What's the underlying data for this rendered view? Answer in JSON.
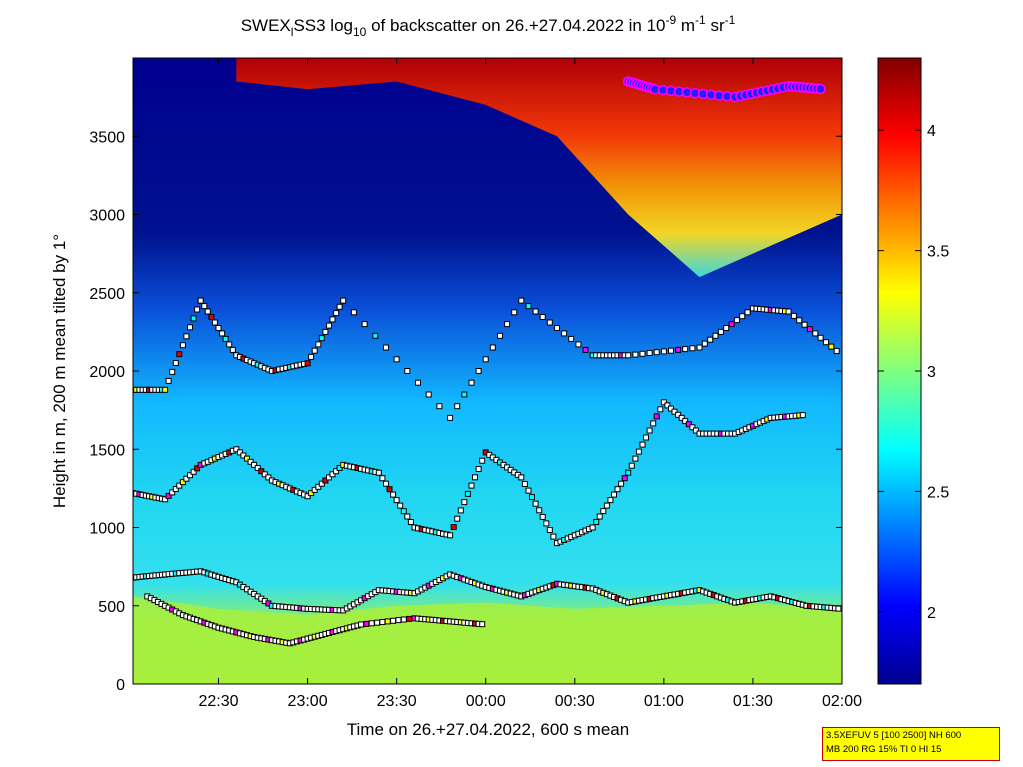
{
  "chart_data": {
    "type": "heatmap",
    "title": {
      "prefix": "SWEX",
      "prefix_sub": "l",
      "mid": "SS3 log",
      "mid_sub": "10",
      "suffix": " of backscatter on 26.+27.04.2022 in 10",
      "unit_exp1": "-9",
      "unit_m": " m",
      "unit_exp2": "-1",
      "unit_sr": " sr",
      "unit_exp3": "-1"
    },
    "xlabel": "Time on 26.+27.04.2022, 600 s mean",
    "ylabel": "Height in m, 200 m mean tilted by 1°",
    "x_ticks": [
      {
        "value": 22.5,
        "label": "22:30"
      },
      {
        "value": 23.0,
        "label": "23:00"
      },
      {
        "value": 23.5,
        "label": "23:30"
      },
      {
        "value": 24.0,
        "label": "00:00"
      },
      {
        "value": 24.5,
        "label": "00:30"
      },
      {
        "value": 25.0,
        "label": "01:00"
      },
      {
        "value": 25.5,
        "label": "01:30"
      },
      {
        "value": 26.0,
        "label": "02:00"
      }
    ],
    "y_ticks": [
      {
        "value": 0,
        "label": "0"
      },
      {
        "value": 500,
        "label": "500"
      },
      {
        "value": 1000,
        "label": "1000"
      },
      {
        "value": 1500,
        "label": "1500"
      },
      {
        "value": 2000,
        "label": "2000"
      },
      {
        "value": 2500,
        "label": "2500"
      },
      {
        "value": 3000,
        "label": "3000"
      },
      {
        "value": 3500,
        "label": "3500"
      }
    ],
    "xlim": [
      22.02,
      26.0
    ],
    "ylim": [
      0,
      4000
    ],
    "colorbar": {
      "colormap": "jet",
      "clim": [
        1.7,
        4.3
      ],
      "ticks": [
        {
          "value": 2.0,
          "label": "2"
        },
        {
          "value": 2.5,
          "label": "2.5"
        },
        {
          "value": 3.0,
          "label": "3"
        },
        {
          "value": 3.5,
          "label": "3.5"
        },
        {
          "value": 4.0,
          "label": "4"
        }
      ]
    },
    "layers": {
      "surface_layer": [
        {
          "x": 22.02,
          "h": 560
        },
        {
          "x": 22.5,
          "h": 480
        },
        {
          "x": 23.0,
          "h": 440
        },
        {
          "x": 23.5,
          "h": 500
        },
        {
          "x": 24.0,
          "h": 520
        },
        {
          "x": 24.5,
          "h": 480
        },
        {
          "x": 25.0,
          "h": 500
        },
        {
          "x": 25.5,
          "h": 520
        },
        {
          "x": 26.0,
          "h": 470
        }
      ],
      "cloud_top_region": [
        {
          "x": 22.6,
          "h": 3850
        },
        {
          "x": 23.0,
          "h": 3800
        },
        {
          "x": 23.5,
          "h": 3850
        },
        {
          "x": 24.0,
          "h": 3700
        },
        {
          "x": 24.4,
          "h": 3500
        },
        {
          "x": 24.8,
          "h": 3000
        },
        {
          "x": 25.2,
          "h": 2600
        },
        {
          "x": 25.6,
          "h": 2800
        },
        {
          "x": 26.0,
          "h": 3000
        }
      ]
    },
    "detections": {
      "series": [
        {
          "name": "layer_boundary_lower",
          "color": "#000000",
          "points": [
            [
              22.02,
              680
            ],
            [
              22.2,
              700
            ],
            [
              22.4,
              720
            ],
            [
              22.6,
              650
            ],
            [
              22.8,
              500
            ],
            [
              23.0,
              480
            ],
            [
              23.2,
              470
            ],
            [
              23.4,
              600
            ],
            [
              23.6,
              580
            ],
            [
              23.8,
              700
            ],
            [
              24.0,
              620
            ],
            [
              24.2,
              560
            ],
            [
              24.4,
              640
            ],
            [
              24.6,
              610
            ],
            [
              24.8,
              520
            ],
            [
              25.0,
              560
            ],
            [
              25.2,
              600
            ],
            [
              25.4,
              520
            ],
            [
              25.6,
              560
            ],
            [
              25.8,
              500
            ],
            [
              26.0,
              480
            ]
          ]
        },
        {
          "name": "layer_boundary_bl",
          "color": "#000000",
          "points": [
            [
              22.1,
              560
            ],
            [
              22.3,
              440
            ],
            [
              22.5,
              360
            ],
            [
              22.7,
              300
            ],
            [
              22.9,
              260
            ],
            [
              23.1,
              320
            ],
            [
              23.3,
              380
            ],
            [
              23.6,
              420
            ],
            [
              23.8,
              400
            ],
            [
              24.0,
              380
            ]
          ]
        },
        {
          "name": "layer_boundary_mid",
          "color": "#000000",
          "points": [
            [
              22.02,
              1220
            ],
            [
              22.2,
              1180
            ],
            [
              22.4,
              1400
            ],
            [
              22.6,
              1500
            ],
            [
              22.8,
              1300
            ],
            [
              23.0,
              1200
            ],
            [
              23.2,
              1400
            ],
            [
              23.4,
              1350
            ],
            [
              23.6,
              1000
            ],
            [
              23.8,
              950
            ],
            [
              24.0,
              1480
            ],
            [
              24.2,
              1320
            ],
            [
              24.4,
              900
            ],
            [
              24.6,
              1000
            ],
            [
              24.8,
              1350
            ],
            [
              25.0,
              1800
            ],
            [
              25.2,
              1600
            ],
            [
              25.4,
              1600
            ],
            [
              25.6,
              1700
            ],
            [
              25.8,
              1720
            ]
          ]
        },
        {
          "name": "layer_boundary_upper",
          "color": "#000000",
          "points": [
            [
              22.02,
              1880
            ],
            [
              22.2,
              1880
            ],
            [
              22.4,
              2450
            ],
            [
              22.6,
              2100
            ],
            [
              22.8,
              2000
            ],
            [
              23.0,
              2050
            ],
            [
              23.2,
              2450
            ],
            [
              23.8,
              1700
            ],
            [
              24.2,
              2450
            ],
            [
              24.6,
              2100
            ],
            [
              24.8,
              2100
            ],
            [
              25.2,
              2150
            ],
            [
              25.5,
              2400
            ],
            [
              25.7,
              2380
            ],
            [
              26.0,
              2100
            ]
          ]
        },
        {
          "name": "cloud_base",
          "color": "#ffffff",
          "points": [
            [
              24.8,
              3850
            ],
            [
              24.95,
              3800
            ],
            [
              25.4,
              3750
            ],
            [
              25.7,
              3820
            ],
            [
              25.9,
              3800
            ]
          ]
        }
      ]
    },
    "legend_box": {
      "line1": "3.5XEFUV 5 [100 2500] NH 600",
      "line2": "MB 200 RG 15% TI 0 HI 15"
    },
    "colors": {
      "marker_black": "#000000",
      "marker_red": "#e00000",
      "marker_yellow": "#ffff00",
      "marker_magenta": "#ff00ff",
      "marker_cyan": "#00ffff",
      "marker_white": "#ffffff",
      "cloud_marker_fill": "#2020ff",
      "cloud_marker_ring": "#ff00ff",
      "annotation_bg": "#ffff00",
      "annotation_border": "#cc0000"
    }
  }
}
